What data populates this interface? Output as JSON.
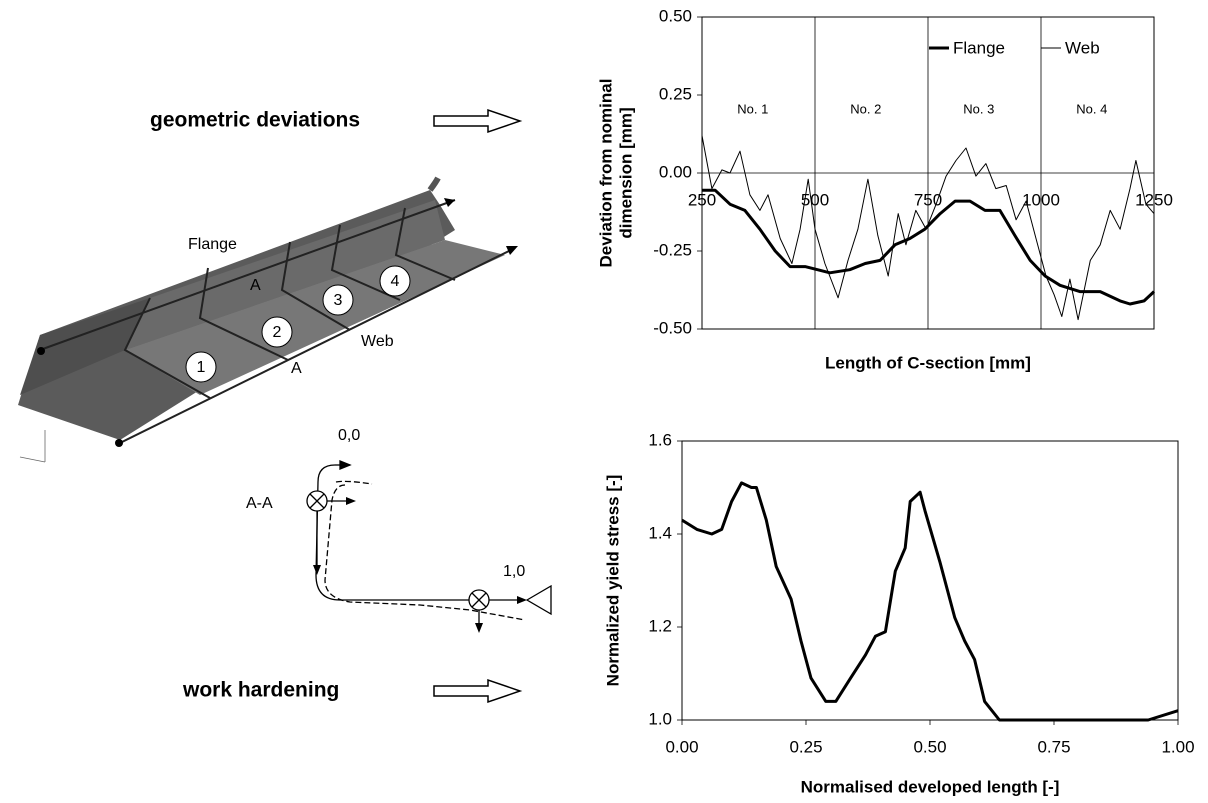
{
  "labels": {
    "geometric": "geometric deviations",
    "work": "work hardening",
    "flange": "Flange",
    "web": "Web",
    "a1": "A",
    "a2": "A",
    "n1": "1",
    "n2": "2",
    "n3": "3",
    "n4": "4",
    "origin": "0,0",
    "section": "A-A",
    "end": "1,0"
  },
  "chart_data": [
    {
      "type": "line",
      "xlabel": "Length of C-section [mm]",
      "ylabel": [
        "Deviation from nominal",
        "dimension [mm]"
      ],
      "xlim": [
        250,
        1250
      ],
      "ylim": [
        -0.5,
        0.5
      ],
      "xticks": [
        250,
        500,
        750,
        1000,
        1250
      ],
      "yticks": [
        {
          "value": 0.5,
          "label": "0.50"
        },
        {
          "value": 0.25,
          "label": "0.25"
        },
        {
          "value": 0,
          "label": "0.00"
        },
        {
          "value": -0.25,
          "label": "-0.25"
        },
        {
          "value": -0.5,
          "label": "-0.50"
        }
      ],
      "grid": true,
      "legend": "top-right",
      "annotations": [
        "No. 1",
        "No. 2",
        "No. 3",
        "No. 4"
      ],
      "series": [
        {
          "name": "Flange",
          "color": "#000000",
          "x": [
            250,
            279,
            312,
            345,
            378,
            412,
            445,
            478,
            533,
            577,
            611,
            644,
            677,
            710,
            743,
            777,
            810,
            843,
            876,
            909,
            942,
            976,
            1009,
            1042,
            1086,
            1131,
            1175,
            1197,
            1228,
            1250
          ],
          "values": [
            -0.055,
            -0.055,
            -0.1,
            -0.12,
            -0.18,
            -0.25,
            -0.3,
            -0.3,
            -0.32,
            -0.31,
            -0.29,
            -0.28,
            -0.23,
            -0.21,
            -0.18,
            -0.13,
            -0.09,
            -0.09,
            -0.12,
            -0.12,
            -0.2,
            -0.28,
            -0.33,
            -0.36,
            -0.38,
            -0.38,
            -0.41,
            -0.42,
            -0.41,
            -0.38
          ]
        },
        {
          "name": "Web",
          "color": "#000000",
          "x": [
            250,
            272,
            294,
            312,
            334,
            356,
            378,
            396,
            423,
            449,
            467,
            485,
            500,
            522,
            551,
            573,
            595,
            617,
            639,
            662,
            684,
            701,
            723,
            746,
            768,
            790,
            812,
            834,
            856,
            878,
            900,
            923,
            945,
            967,
            989,
            1011,
            1029,
            1046,
            1064,
            1082,
            1109,
            1131,
            1153,
            1175,
            1197,
            1210,
            1232,
            1250
          ],
          "values": [
            0.12,
            -0.05,
            0.01,
            0.0,
            0.07,
            -0.07,
            -0.12,
            -0.07,
            -0.21,
            -0.29,
            -0.18,
            -0.02,
            -0.18,
            -0.29,
            -0.4,
            -0.28,
            -0.18,
            -0.02,
            -0.2,
            -0.33,
            -0.13,
            -0.23,
            -0.12,
            -0.18,
            -0.1,
            -0.01,
            0.04,
            0.08,
            -0.01,
            0.03,
            -0.05,
            -0.04,
            -0.15,
            -0.09,
            -0.21,
            -0.33,
            -0.39,
            -0.46,
            -0.34,
            -0.47,
            -0.28,
            -0.23,
            -0.12,
            -0.18,
            -0.05,
            0.04,
            -0.1,
            -0.13
          ]
        }
      ]
    },
    {
      "type": "line",
      "xlabel": "Normalised developed length [-]",
      "ylabel": [
        "Normalized yield stress [-]"
      ],
      "xlim": [
        0,
        1
      ],
      "ylim": [
        1.0,
        1.6
      ],
      "xticks": [
        {
          "value": 0,
          "label": "0.00"
        },
        {
          "value": 0.25,
          "label": "0.25"
        },
        {
          "value": 0.5,
          "label": "0.50"
        },
        {
          "value": 0.75,
          "label": "0.75"
        },
        {
          "value": 1,
          "label": "1.00"
        }
      ],
      "yticks": [
        {
          "value": 1.0,
          "label": "1.0"
        },
        {
          "value": 1.2,
          "label": "1.2"
        },
        {
          "value": 1.4,
          "label": "1.4"
        },
        {
          "value": 1.6,
          "label": "1.6"
        }
      ],
      "grid": false,
      "series": [
        {
          "color": "#000000",
          "x": [
            0,
            0.03,
            0.06,
            0.08,
            0.1,
            0.12,
            0.14,
            0.15,
            0.17,
            0.19,
            0.22,
            0.24,
            0.26,
            0.29,
            0.31,
            0.34,
            0.37,
            0.39,
            0.41,
            0.43,
            0.45,
            0.46,
            0.48,
            0.49,
            0.52,
            0.55,
            0.57,
            0.59,
            0.61,
            0.64,
            0.74,
            0.88,
            0.94,
            1.0
          ],
          "values": [
            1.43,
            1.41,
            1.4,
            1.41,
            1.47,
            1.51,
            1.5,
            1.5,
            1.43,
            1.33,
            1.26,
            1.17,
            1.09,
            1.04,
            1.04,
            1.09,
            1.14,
            1.18,
            1.19,
            1.32,
            1.37,
            1.47,
            1.49,
            1.45,
            1.34,
            1.22,
            1.17,
            1.13,
            1.04,
            1.0,
            1.0,
            1.0,
            1.0,
            1.02
          ]
        }
      ]
    }
  ]
}
